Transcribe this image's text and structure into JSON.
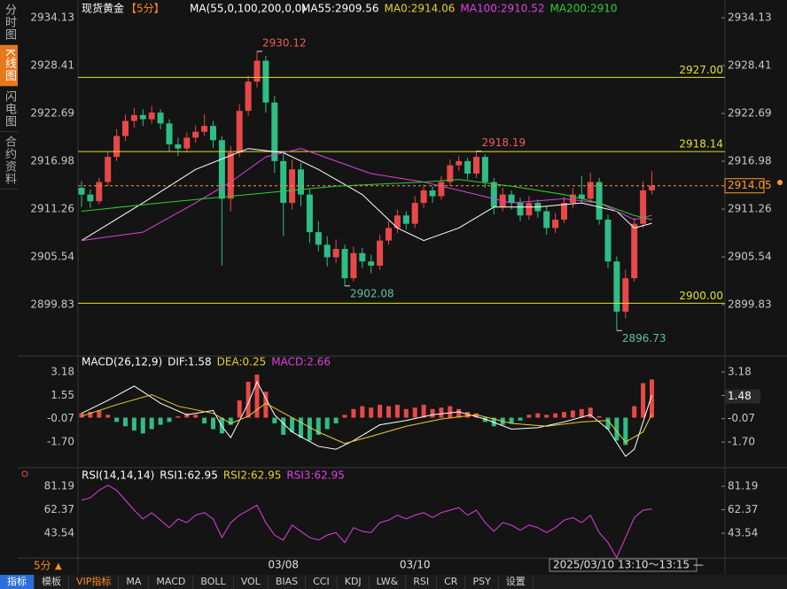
{
  "ui": {
    "sidebar_tabs": [
      "分时图",
      "K线图",
      "闪电图",
      "合约资料"
    ],
    "active_tab": 1,
    "period": "5分",
    "period_arrow": "▲",
    "time_range": "2025/03/10 13:10～13:15 —",
    "toolbar": [
      "指标",
      "模板",
      "VIP指标",
      "MA",
      "MACD",
      "BOLL",
      "VOL",
      "BIAS",
      "CCI",
      "KDJ",
      "LW&",
      "RSI",
      "CR",
      "PSY",
      "设置"
    ]
  },
  "chart_data": [
    {
      "type": "candlestick",
      "title": "现货黄金",
      "period_tag": "【5分】",
      "indicator": "MA(55,0,100,200,0,0)",
      "legend": [
        {
          "label": "MA55:2909.56",
          "color": "#ffffff"
        },
        {
          "label": "MA0:2914.06",
          "color": "#e8d030"
        },
        {
          "label": "MA100:2910.52",
          "color": "#e040e0"
        },
        {
          "label": "MA200:2910",
          "color": "#30d030"
        }
      ],
      "up_color": "#e84848",
      "down_color": "#2ebd85",
      "ylim": [
        2893.9,
        2935.2
      ],
      "yticks": [
        2934.13,
        2928.41,
        2922.69,
        2916.98,
        2911.26,
        2905.54,
        2899.83
      ],
      "candles": [
        [
          2913.8,
          2914.6,
          2911.5,
          2913.0
        ],
        [
          2913.0,
          2913.6,
          2911.4,
          2912.2
        ],
        [
          2912.2,
          2915.0,
          2911.8,
          2914.5
        ],
        [
          2914.5,
          2918.2,
          2914.0,
          2917.5
        ],
        [
          2917.5,
          2920.8,
          2917.0,
          2920.0
        ],
        [
          2920.0,
          2922.6,
          2919.4,
          2921.8
        ],
        [
          2921.8,
          2923.4,
          2921.0,
          2922.5
        ],
        [
          2922.5,
          2923.2,
          2921.2,
          2922.0
        ],
        [
          2922.0,
          2923.6,
          2921.5,
          2922.8
        ],
        [
          2922.8,
          2923.2,
          2920.8,
          2921.5
        ],
        [
          2921.5,
          2922.0,
          2918.2,
          2919.0
        ],
        [
          2919.0,
          2919.8,
          2917.6,
          2918.5
        ],
        [
          2918.5,
          2920.4,
          2918.0,
          2919.8
        ],
        [
          2919.8,
          2921.3,
          2919.2,
          2920.5
        ],
        [
          2920.5,
          2922.6,
          2920.0,
          2921.2
        ],
        [
          2921.2,
          2921.8,
          2918.6,
          2919.5
        ],
        [
          2919.5,
          2920.0,
          2904.5,
          2912.5
        ],
        [
          2912.5,
          2918.8,
          2911.0,
          2918.0
        ],
        [
          2918.0,
          2923.8,
          2917.5,
          2923.0
        ],
        [
          2923.0,
          2927.2,
          2922.4,
          2926.5
        ],
        [
          2926.5,
          2930.12,
          2925.8,
          2929.0
        ],
        [
          2929.0,
          2929.6,
          2922.8,
          2924.0
        ],
        [
          2924.0,
          2924.8,
          2915.6,
          2917.0
        ],
        [
          2917.0,
          2918.2,
          2908.0,
          2912.0
        ],
        [
          2912.0,
          2917.2,
          2911.2,
          2916.0
        ],
        [
          2916.0,
          2916.8,
          2911.6,
          2913.0
        ],
        [
          2913.0,
          2913.6,
          2907.2,
          2908.5
        ],
        [
          2908.5,
          2909.8,
          2906.2,
          2907.0
        ],
        [
          2907.0,
          2908.0,
          2904.4,
          2905.5
        ],
        [
          2905.5,
          2907.6,
          2904.8,
          2906.5
        ],
        [
          2906.5,
          2907.0,
          2902.08,
          2903.0
        ],
        [
          2903.0,
          2906.8,
          2902.6,
          2906.0
        ],
        [
          2906.0,
          2906.6,
          2904.2,
          2905.0
        ],
        [
          2905.0,
          2905.8,
          2903.6,
          2904.5
        ],
        [
          2904.5,
          2908.2,
          2904.0,
          2907.5
        ],
        [
          2907.5,
          2909.8,
          2907.0,
          2909.0
        ],
        [
          2909.0,
          2911.2,
          2908.4,
          2910.5
        ],
        [
          2910.5,
          2911.0,
          2908.8,
          2909.5
        ],
        [
          2909.5,
          2912.8,
          2909.0,
          2912.0
        ],
        [
          2912.0,
          2914.2,
          2911.4,
          2913.5
        ],
        [
          2913.5,
          2914.0,
          2912.0,
          2912.8
        ],
        [
          2912.8,
          2915.2,
          2912.4,
          2914.5
        ],
        [
          2914.5,
          2917.2,
          2914.0,
          2916.5
        ],
        [
          2916.5,
          2917.6,
          2915.8,
          2917.0
        ],
        [
          2917.0,
          2917.4,
          2914.8,
          2915.5
        ],
        [
          2915.5,
          2918.19,
          2915.0,
          2917.5
        ],
        [
          2917.5,
          2917.8,
          2913.8,
          2914.5
        ],
        [
          2914.5,
          2915.0,
          2910.6,
          2911.5
        ],
        [
          2911.5,
          2913.8,
          2911.0,
          2913.0
        ],
        [
          2913.0,
          2913.5,
          2911.2,
          2912.0
        ],
        [
          2912.0,
          2912.6,
          2909.8,
          2910.5
        ],
        [
          2910.5,
          2912.8,
          2910.0,
          2912.0
        ],
        [
          2912.0,
          2912.4,
          2910.2,
          2911.0
        ],
        [
          2911.0,
          2911.6,
          2908.2,
          2909.0
        ],
        [
          2909.0,
          2910.8,
          2908.4,
          2910.0
        ],
        [
          2910.0,
          2912.8,
          2909.6,
          2912.0
        ],
        [
          2912.0,
          2913.8,
          2911.4,
          2913.0
        ],
        [
          2913.0,
          2915.2,
          2912.0,
          2912.5
        ],
        [
          2912.5,
          2915.6,
          2912.0,
          2914.5
        ],
        [
          2914.5,
          2915.0,
          2909.4,
          2910.0
        ],
        [
          2910.0,
          2910.6,
          2904.2,
          2905.0
        ],
        [
          2905.0,
          2905.6,
          2896.73,
          2899.0
        ],
        [
          2899.0,
          2904.0,
          2898.2,
          2903.0
        ],
        [
          2903.0,
          2910.2,
          2902.6,
          2909.5
        ],
        [
          2909.5,
          2914.6,
          2909.0,
          2913.5
        ],
        [
          2913.5,
          2915.8,
          2913.0,
          2914.05
        ]
      ],
      "series": [
        {
          "color": "#ffffff",
          "x": [
            0,
            7,
            13,
            19,
            23,
            27,
            32,
            36,
            39,
            43,
            47,
            52,
            57,
            61,
            63,
            65
          ],
          "values": [
            2907.5,
            2912,
            2916,
            2918.5,
            2918,
            2916,
            2913,
            2909,
            2907.5,
            2909,
            2911.5,
            2911.5,
            2912,
            2911,
            2909,
            2909.56
          ]
        },
        {
          "color": "#e040e0",
          "x": [
            0,
            7,
            13,
            17,
            21,
            25,
            29,
            33,
            39,
            43,
            49,
            55,
            59,
            63,
            65
          ],
          "values": [
            2907.5,
            2908.5,
            2912,
            2914.5,
            2917.5,
            2918.5,
            2917,
            2915.5,
            2914.5,
            2913.5,
            2912,
            2912.5,
            2912,
            2910,
            2910.52
          ]
        },
        {
          "color": "#30d030",
          "x": [
            0,
            9,
            19,
            29,
            39,
            43,
            49,
            55,
            59,
            63,
            65
          ],
          "values": [
            2911,
            2912,
            2913,
            2914,
            2914.5,
            2914.8,
            2914,
            2913,
            2912,
            2910.5,
            2910
          ]
        }
      ],
      "level_color": "#e0e030",
      "levels": [
        {
          "value": 2927,
          "label": "2927.00"
        },
        {
          "value": 2918.14,
          "label": "2918.14"
        },
        {
          "value": 2900,
          "label": "2900.00"
        }
      ],
      "last_price": 2914.05,
      "last_price_color": "#ff9a2e",
      "annotations": [
        {
          "index": 20,
          "value": 2930.12,
          "color": "#f05a5a"
        },
        {
          "index": 45,
          "value": 2918.19,
          "color": "#f05a5a"
        },
        {
          "index": 30,
          "value": 2902.08,
          "color": "#5fc09f"
        },
        {
          "index": 61,
          "value": 2896.73,
          "color": "#5fc09f"
        }
      ]
    },
    {
      "type": "bar",
      "legend": [
        {
          "label": "MACD(26,12,9)",
          "color": "#ffffff"
        },
        {
          "label": "DIF:1.58",
          "color": "#ffffff"
        },
        {
          "label": "DEA:0.25",
          "color": "#e8d030"
        },
        {
          "label": "MACD:2.66",
          "color": "#e040e0"
        }
      ],
      "up_color": "#e84848",
      "down_color": "#2ebd85",
      "ylim": [
        -2.99,
        3.92
      ],
      "yticks": [
        3.18,
        1.55,
        -0.07,
        {
          "value": -1.7,
          "label": "-1.70"
        }
      ],
      "values": [
        0.3,
        0.4,
        0.5,
        0.2,
        -0.3,
        -0.6,
        -0.9,
        -1.1,
        -0.8,
        -0.5,
        -0.3,
        0.1,
        0.3,
        0.2,
        -0.4,
        -0.8,
        -1.1,
        -0.5,
        1.2,
        2.5,
        3.0,
        1.8,
        -0.4,
        -1.2,
        -1.0,
        -1.4,
        -1.6,
        -1.2,
        -0.8,
        -0.4,
        0.2,
        0.6,
        0.8,
        0.7,
        0.9,
        0.8,
        0.9,
        0.6,
        0.7,
        0.9,
        0.6,
        0.7,
        0.8,
        0.6,
        0.4,
        0.3,
        -0.3,
        -0.6,
        -0.5,
        -0.4,
        -0.2,
        0.2,
        0.3,
        0.2,
        0.3,
        0.4,
        0.5,
        0.6,
        0.7,
        0.1,
        -0.8,
        -1.6,
        -1.9,
        0.8,
        2.4,
        2.66
      ],
      "series": [
        {
          "color": "#ffffff",
          "x": [
            0,
            3,
            6,
            9,
            12,
            15,
            16,
            17,
            19,
            20,
            22,
            24,
            27,
            29,
            31,
            34,
            37,
            40,
            43,
            46,
            49,
            52,
            55,
            58,
            60,
            62,
            63,
            65
          ],
          "values": [
            0.3,
            1.2,
            2.2,
            1.0,
            0.2,
            0.5,
            -0.6,
            -1.4,
            1.0,
            2.5,
            0.2,
            -1.0,
            -2.0,
            -2.2,
            -1.6,
            -0.5,
            -0.2,
            0.2,
            0.4,
            -0.1,
            -0.8,
            -0.7,
            -0.3,
            0.2,
            -0.8,
            -2.7,
            -2.2,
            1.58
          ]
        },
        {
          "color": "#e8d030",
          "x": [
            0,
            4,
            8,
            11,
            15,
            17,
            19,
            21,
            24,
            27,
            30,
            33,
            37,
            41,
            45,
            49,
            53,
            57,
            60,
            62,
            64,
            65
          ],
          "values": [
            0.1,
            0.9,
            1.6,
            0.8,
            0.3,
            -0.4,
            0.1,
            1.0,
            0.0,
            -1.0,
            -1.8,
            -1.3,
            -0.6,
            -0.1,
            0.2,
            -0.4,
            -0.6,
            -0.3,
            -0.2,
            -1.7,
            -1.0,
            0.25
          ]
        }
      ],
      "crosshair_value": 1.48
    },
    {
      "type": "line",
      "legend": [
        {
          "label": "RSI(14,14,14)",
          "color": "#ffffff"
        },
        {
          "label": "RSI1:62.95",
          "color": "#ffffff"
        },
        {
          "label": "RSI2:62.95",
          "color": "#e8d030"
        },
        {
          "label": "RSI3:62.95",
          "color": "#e040e0"
        }
      ],
      "color": "#e040e0",
      "ylim": [
        22.2,
        87.6
      ],
      "yticks": [
        81.19,
        62.37,
        43.54
      ],
      "categories": [
        null,
        null,
        null,
        null,
        null,
        null,
        null,
        null,
        null,
        null,
        null,
        null,
        null,
        null,
        null,
        null,
        null,
        null,
        null,
        null,
        null,
        null,
        null,
        "03/08",
        null,
        null,
        null,
        null,
        null,
        null,
        null,
        null,
        null,
        null,
        null,
        null,
        null,
        null,
        "03/10",
        null,
        null,
        null,
        null,
        null,
        null,
        null,
        null,
        null,
        null,
        null,
        null,
        null,
        null,
        null,
        null,
        null,
        null,
        null,
        null,
        null,
        null,
        null,
        null,
        null,
        null,
        null
      ],
      "values": [
        70,
        72,
        78,
        82,
        78,
        70,
        62,
        55,
        60,
        54,
        48,
        55,
        52,
        58,
        60,
        55,
        40,
        52,
        58,
        62,
        66,
        52,
        42,
        38,
        50,
        45,
        40,
        38,
        42,
        44,
        36,
        48,
        45,
        44,
        52,
        54,
        58,
        55,
        58,
        60,
        56,
        60,
        62,
        64,
        58,
        62,
        52,
        45,
        52,
        50,
        46,
        50,
        48,
        44,
        48,
        54,
        56,
        52,
        58,
        44,
        36,
        24,
        40,
        56,
        62,
        62.95
      ]
    }
  ]
}
